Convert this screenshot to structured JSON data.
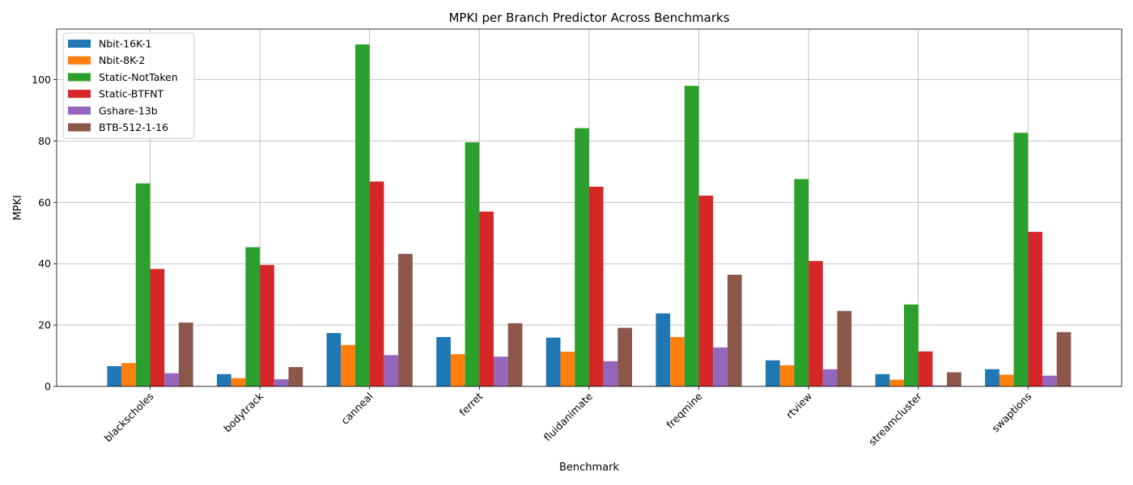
{
  "chart_data": {
    "type": "bar",
    "title": "MPKI per Branch Predictor Across Benchmarks",
    "xlabel": "Benchmark",
    "ylabel": "MPKI",
    "ylim": [
      0,
      116.5
    ],
    "yticks": [
      0,
      20,
      40,
      60,
      80,
      100
    ],
    "grid": true,
    "legend_position": "top-left",
    "categories": [
      "blackscholes",
      "bodytrack",
      "canneal",
      "ferret",
      "fluidanimate",
      "freqmine",
      "rtview",
      "streamcluster",
      "swaptions"
    ],
    "series": [
      {
        "name": "Nbit-16K-1",
        "color": "#1f77b4",
        "values": [
          6.6,
          4.0,
          17.4,
          16.1,
          15.9,
          23.8,
          8.5,
          4.0,
          5.6
        ]
      },
      {
        "name": "Nbit-8K-2",
        "color": "#ff7f0e",
        "values": [
          7.6,
          2.7,
          13.5,
          10.5,
          11.3,
          16.1,
          6.9,
          2.2,
          3.8
        ]
      },
      {
        "name": "Static-NotTaken",
        "color": "#2ca02c",
        "values": [
          66.2,
          45.4,
          111.5,
          79.6,
          84.2,
          98.0,
          67.6,
          26.7,
          82.7
        ]
      },
      {
        "name": "Static-BTFNT",
        "color": "#d62728",
        "values": [
          38.3,
          39.6,
          66.8,
          57.0,
          65.1,
          62.2,
          40.9,
          11.4,
          50.4
        ]
      },
      {
        "name": "Gshare-13b",
        "color": "#9467bd",
        "values": [
          4.3,
          2.3,
          10.2,
          9.7,
          8.2,
          12.7,
          5.6,
          0.3,
          3.5
        ]
      },
      {
        "name": "BTB-512-1-16",
        "color": "#8c564b",
        "values": [
          20.8,
          6.3,
          43.2,
          20.6,
          19.1,
          36.4,
          24.6,
          4.6,
          17.7
        ]
      }
    ]
  }
}
